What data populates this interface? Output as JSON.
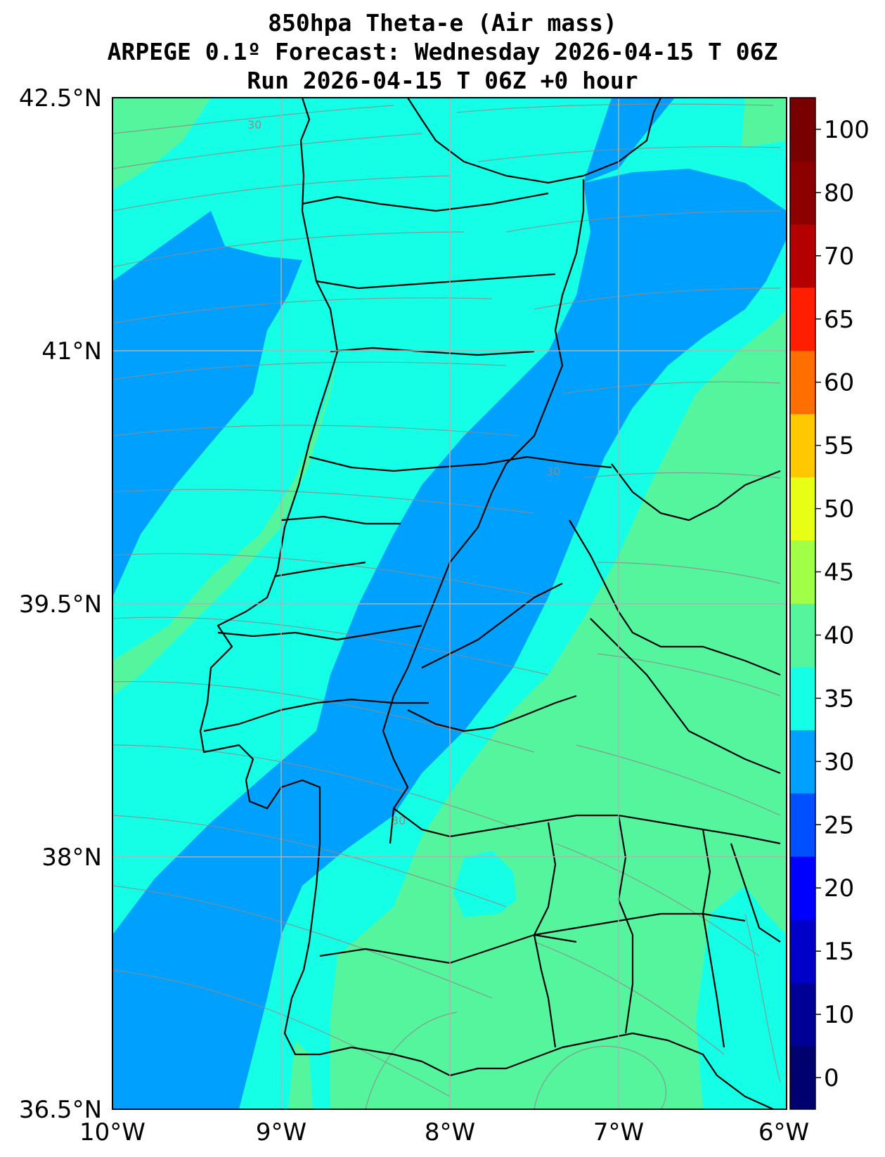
{
  "title": {
    "line1": "850hpa Theta-e (Air mass)",
    "line2": "ARPEGE 0.1º Forecast: Wednesday 2026-04-15 T 06Z",
    "line3": "Run 2026-04-15 T 06Z +0 hour"
  },
  "axes": {
    "lat_labels": [
      "42.5°N",
      "41°N",
      "39.5°N",
      "38°N",
      "36.5°N"
    ],
    "lon_labels": [
      "10°W",
      "9°W",
      "8°W",
      "7°W",
      "6°W"
    ]
  },
  "colorbar": {
    "tick_labels": [
      "0",
      "10",
      "15",
      "20",
      "25",
      "30",
      "35",
      "40",
      "45",
      "50",
      "55",
      "60",
      "65",
      "70",
      "80",
      "100"
    ],
    "colors": [
      "#00006e",
      "#000096",
      "#0000c8",
      "#0000ff",
      "#0050ff",
      "#00a0ff",
      "#14ffe6",
      "#55f59e",
      "#a0ff46",
      "#e6ff14",
      "#ffc800",
      "#ff6e00",
      "#ff1e00",
      "#b40000",
      "#8c0000",
      "#780000"
    ]
  },
  "contour_labels": [
    "30",
    "30",
    "30"
  ],
  "colors": {
    "band_blue": "#00a0ff",
    "band_cyan": "#14ffe6",
    "band_green": "#55f59e",
    "borders": "#000000",
    "grid": "#b0b0b0",
    "streamlines": "#8c8c8c"
  },
  "icons": [
    "compass-grid"
  ]
}
